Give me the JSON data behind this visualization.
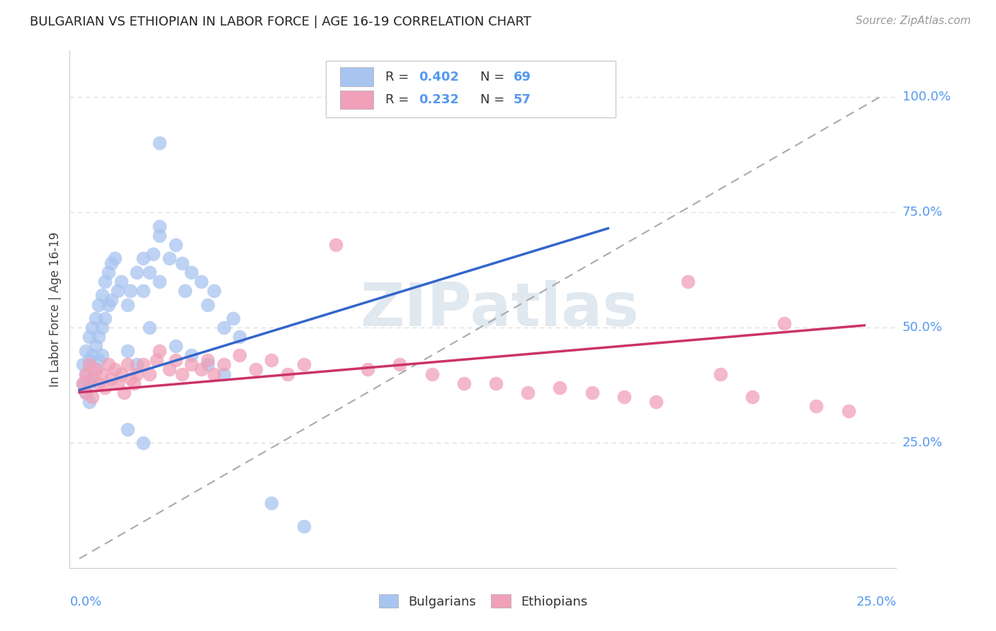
{
  "title": "BULGARIAN VS ETHIOPIAN IN LABOR FORCE | AGE 16-19 CORRELATION CHART",
  "source": "Source: ZipAtlas.com",
  "ylabel": "In Labor Force | Age 16-19",
  "x_tick_left": "0.0%",
  "x_tick_right": "25.0%",
  "y_ticks_labels": [
    "25.0%",
    "50.0%",
    "75.0%",
    "100.0%"
  ],
  "y_ticks_vals": [
    0.25,
    0.5,
    0.75,
    1.0
  ],
  "xlim": [
    -0.003,
    0.255
  ],
  "ylim": [
    -0.02,
    1.1
  ],
  "bulgarians_color": "#a8c4f0",
  "ethiopians_color": "#f0a0b8",
  "trend_bulgarian_color": "#3366cc",
  "trend_ethiopian_color": "#cc3366",
  "diag_color": "#aaaaaa",
  "grid_color": "#dddddd",
  "title_color": "#222222",
  "axis_label_color": "#5599ee",
  "R_bulgarian": 0.402,
  "N_bulgarian": 69,
  "R_ethiopian": 0.232,
  "N_ethiopian": 57,
  "watermark_text": "ZIPatlas",
  "legend_labels": [
    "Bulgarians",
    "Ethiopians"
  ],
  "trend_b_x0": 0.0,
  "trend_b_y0": 0.365,
  "trend_b_x1": 0.165,
  "trend_b_y1": 0.715,
  "trend_e_x0": 0.0,
  "trend_e_y0": 0.36,
  "trend_e_x1": 0.245,
  "trend_e_y1": 0.505
}
